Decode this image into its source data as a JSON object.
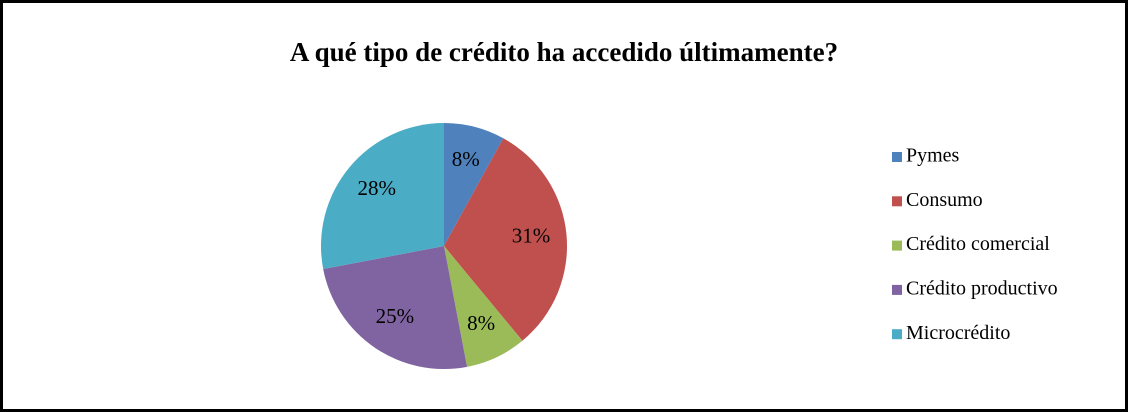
{
  "chart_data": {
    "type": "pie",
    "title": "A qué tipo de crédito ha accedido últimamente?",
    "categories": [
      "Pymes",
      "Consumo",
      "Crédito comercial",
      "Crédito productivo",
      "Microcrédito"
    ],
    "values": [
      8,
      31,
      8,
      25,
      28
    ],
    "value_labels": [
      "8%",
      "31%",
      "8%",
      "25%",
      "28%"
    ],
    "colors": [
      "#4f81bd",
      "#c0504d",
      "#9bbb59",
      "#8064a2",
      "#4bacc6"
    ],
    "legend": "right"
  }
}
